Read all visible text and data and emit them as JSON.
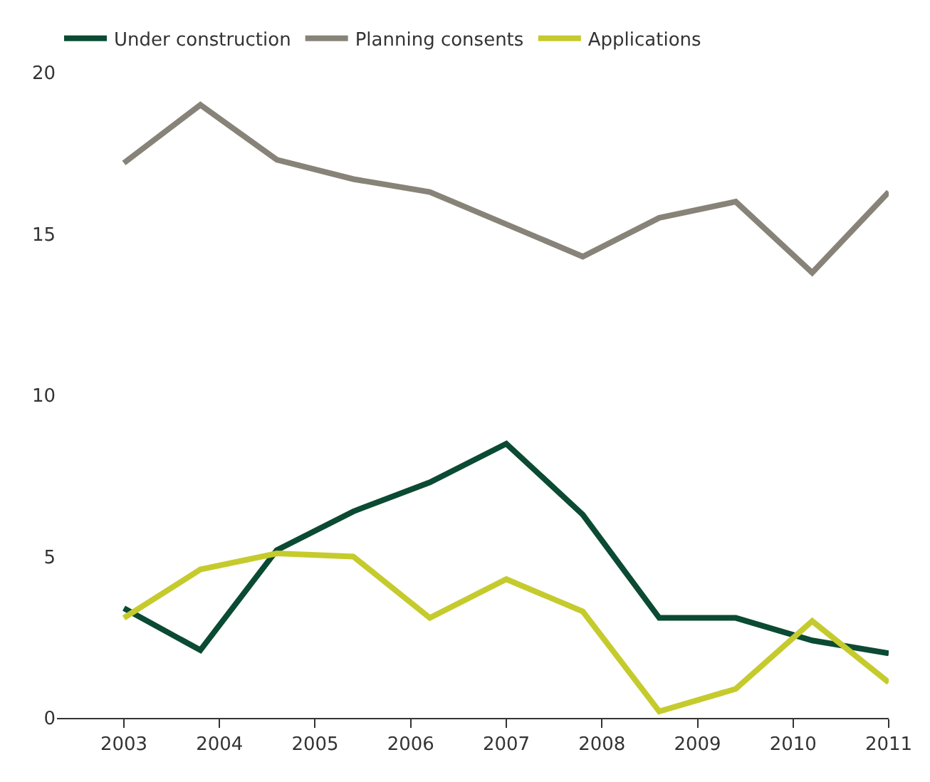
{
  "chart_data": {
    "type": "line",
    "x": [
      2003,
      2003.8,
      2004.6,
      2005.4,
      2006.2,
      2007,
      2007.8,
      2008.6,
      2009.4,
      2010.2,
      2011
    ],
    "series": [
      {
        "name": "Under construction",
        "color": "#0b4a33",
        "values": [
          3.4,
          2.1,
          5.2,
          6.4,
          7.3,
          8.5,
          6.3,
          3.1,
          3.1,
          2.4,
          2.0
        ]
      },
      {
        "name": "Planning consents",
        "color": "#878378",
        "values": [
          17.2,
          19.0,
          17.3,
          16.7,
          16.3,
          15.3,
          14.3,
          15.5,
          16.0,
          13.8,
          16.3
        ]
      },
      {
        "name": "Applications",
        "color": "#c5cb2c",
        "values": [
          3.1,
          4.6,
          5.1,
          5.0,
          3.1,
          4.3,
          3.3,
          0.2,
          0.9,
          3.0,
          1.1
        ]
      }
    ],
    "xlim": [
      2002.3,
      2011
    ],
    "xticks": [
      2003,
      2004,
      2005,
      2006,
      2007,
      2008,
      2009,
      2010,
      2011
    ],
    "ylim": [
      0,
      20
    ],
    "yticks": [
      0,
      5,
      10,
      15,
      20
    ],
    "legend": "top left",
    "marker": "none",
    "line_style": "solid"
  }
}
